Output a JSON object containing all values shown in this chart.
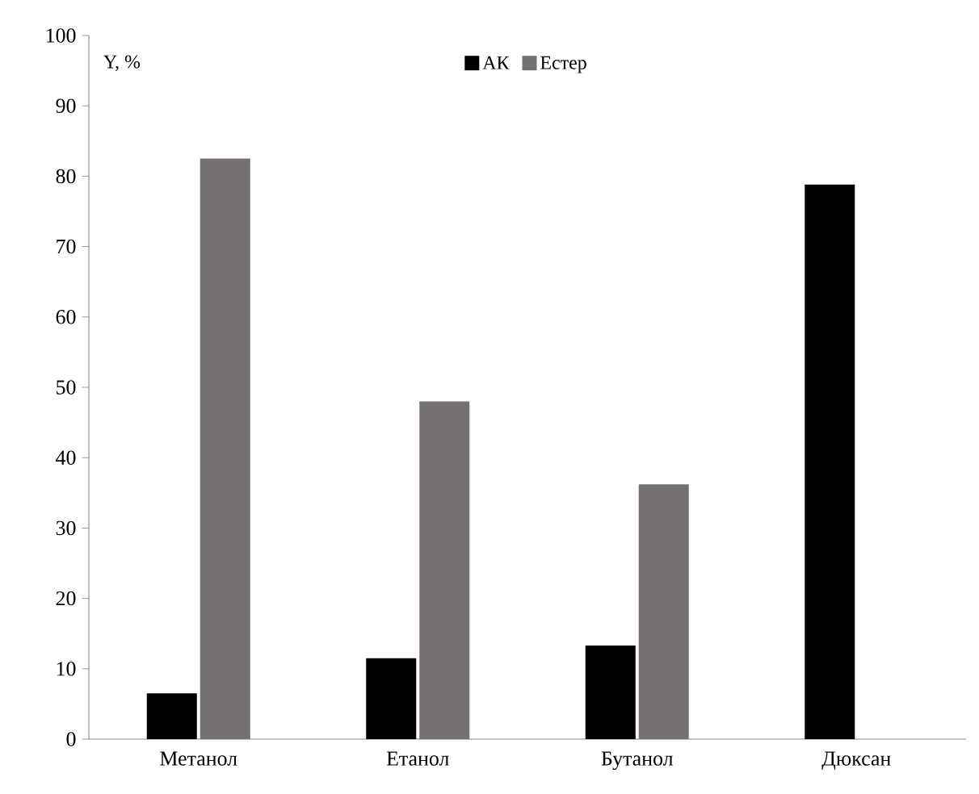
{
  "chart_data": {
    "type": "bar",
    "ylabel": "Y, %",
    "categories": [
      "Метанол",
      "Етанол",
      "Бутанол",
      "Дюксан"
    ],
    "series": [
      {
        "name": "АК",
        "color": "#000000",
        "values": [
          6.5,
          11.5,
          13.3,
          78.8
        ]
      },
      {
        "name": "Естер",
        "color": "#767171",
        "values": [
          82.5,
          48,
          36.2,
          null
        ]
      }
    ],
    "ylim": [
      0,
      100
    ],
    "yticks": [
      0,
      10,
      20,
      30,
      40,
      50,
      60,
      70,
      80,
      90,
      100
    ],
    "legend": "top",
    "grid": false
  }
}
